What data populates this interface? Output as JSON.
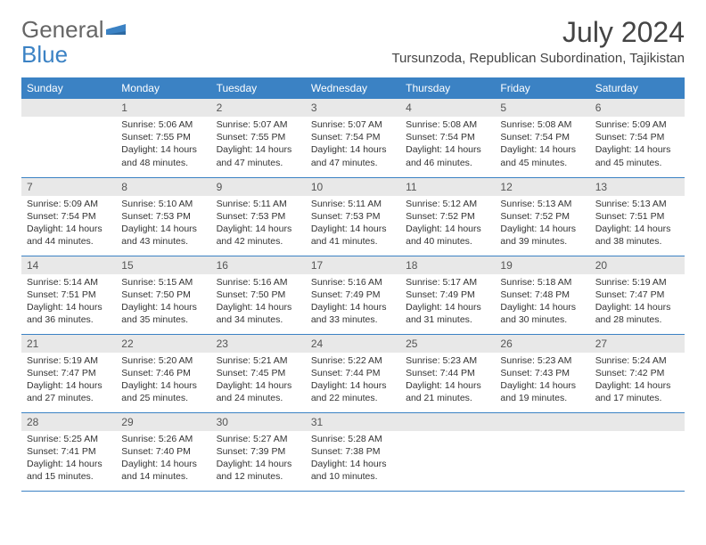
{
  "brand": {
    "general": "General",
    "blue": "Blue"
  },
  "title": "July 2024",
  "location": "Tursunzoda, Republican Subordination, Tajikistan",
  "colors": {
    "header_bg": "#3b82c4",
    "header_fg": "#ffffff",
    "daynum_bg": "#e8e8e8",
    "border": "#3b82c4",
    "text": "#333333",
    "background": "#ffffff"
  },
  "daynames": [
    "Sunday",
    "Monday",
    "Tuesday",
    "Wednesday",
    "Thursday",
    "Friday",
    "Saturday"
  ],
  "weeks": [
    [
      null,
      {
        "n": "1",
        "sr": "5:06 AM",
        "ss": "7:55 PM",
        "dl": "14 hours and 48 minutes."
      },
      {
        "n": "2",
        "sr": "5:07 AM",
        "ss": "7:55 PM",
        "dl": "14 hours and 47 minutes."
      },
      {
        "n": "3",
        "sr": "5:07 AM",
        "ss": "7:54 PM",
        "dl": "14 hours and 47 minutes."
      },
      {
        "n": "4",
        "sr": "5:08 AM",
        "ss": "7:54 PM",
        "dl": "14 hours and 46 minutes."
      },
      {
        "n": "5",
        "sr": "5:08 AM",
        "ss": "7:54 PM",
        "dl": "14 hours and 45 minutes."
      },
      {
        "n": "6",
        "sr": "5:09 AM",
        "ss": "7:54 PM",
        "dl": "14 hours and 45 minutes."
      }
    ],
    [
      {
        "n": "7",
        "sr": "5:09 AM",
        "ss": "7:54 PM",
        "dl": "14 hours and 44 minutes."
      },
      {
        "n": "8",
        "sr": "5:10 AM",
        "ss": "7:53 PM",
        "dl": "14 hours and 43 minutes."
      },
      {
        "n": "9",
        "sr": "5:11 AM",
        "ss": "7:53 PM",
        "dl": "14 hours and 42 minutes."
      },
      {
        "n": "10",
        "sr": "5:11 AM",
        "ss": "7:53 PM",
        "dl": "14 hours and 41 minutes."
      },
      {
        "n": "11",
        "sr": "5:12 AM",
        "ss": "7:52 PM",
        "dl": "14 hours and 40 minutes."
      },
      {
        "n": "12",
        "sr": "5:13 AM",
        "ss": "7:52 PM",
        "dl": "14 hours and 39 minutes."
      },
      {
        "n": "13",
        "sr": "5:13 AM",
        "ss": "7:51 PM",
        "dl": "14 hours and 38 minutes."
      }
    ],
    [
      {
        "n": "14",
        "sr": "5:14 AM",
        "ss": "7:51 PM",
        "dl": "14 hours and 36 minutes."
      },
      {
        "n": "15",
        "sr": "5:15 AM",
        "ss": "7:50 PM",
        "dl": "14 hours and 35 minutes."
      },
      {
        "n": "16",
        "sr": "5:16 AM",
        "ss": "7:50 PM",
        "dl": "14 hours and 34 minutes."
      },
      {
        "n": "17",
        "sr": "5:16 AM",
        "ss": "7:49 PM",
        "dl": "14 hours and 33 minutes."
      },
      {
        "n": "18",
        "sr": "5:17 AM",
        "ss": "7:49 PM",
        "dl": "14 hours and 31 minutes."
      },
      {
        "n": "19",
        "sr": "5:18 AM",
        "ss": "7:48 PM",
        "dl": "14 hours and 30 minutes."
      },
      {
        "n": "20",
        "sr": "5:19 AM",
        "ss": "7:47 PM",
        "dl": "14 hours and 28 minutes."
      }
    ],
    [
      {
        "n": "21",
        "sr": "5:19 AM",
        "ss": "7:47 PM",
        "dl": "14 hours and 27 minutes."
      },
      {
        "n": "22",
        "sr": "5:20 AM",
        "ss": "7:46 PM",
        "dl": "14 hours and 25 minutes."
      },
      {
        "n": "23",
        "sr": "5:21 AM",
        "ss": "7:45 PM",
        "dl": "14 hours and 24 minutes."
      },
      {
        "n": "24",
        "sr": "5:22 AM",
        "ss": "7:44 PM",
        "dl": "14 hours and 22 minutes."
      },
      {
        "n": "25",
        "sr": "5:23 AM",
        "ss": "7:44 PM",
        "dl": "14 hours and 21 minutes."
      },
      {
        "n": "26",
        "sr": "5:23 AM",
        "ss": "7:43 PM",
        "dl": "14 hours and 19 minutes."
      },
      {
        "n": "27",
        "sr": "5:24 AM",
        "ss": "7:42 PM",
        "dl": "14 hours and 17 minutes."
      }
    ],
    [
      {
        "n": "28",
        "sr": "5:25 AM",
        "ss": "7:41 PM",
        "dl": "14 hours and 15 minutes."
      },
      {
        "n": "29",
        "sr": "5:26 AM",
        "ss": "7:40 PM",
        "dl": "14 hours and 14 minutes."
      },
      {
        "n": "30",
        "sr": "5:27 AM",
        "ss": "7:39 PM",
        "dl": "14 hours and 12 minutes."
      },
      {
        "n": "31",
        "sr": "5:28 AM",
        "ss": "7:38 PM",
        "dl": "14 hours and 10 minutes."
      },
      null,
      null,
      null
    ]
  ],
  "labels": {
    "sunrise": "Sunrise:",
    "sunset": "Sunset:",
    "daylight": "Daylight:"
  }
}
